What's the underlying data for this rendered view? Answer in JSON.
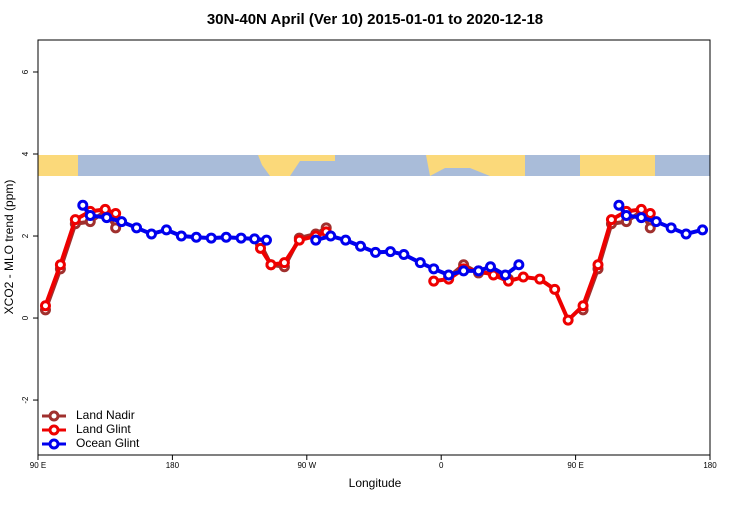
{
  "chart_data": {
    "type": "line",
    "title": "30N-40N April (Ver 10)   2015-01-01 to 2020-12-18",
    "x_label": "Longitude",
    "y_label": "XCO2 - MLO trend (ppm)",
    "xlim": [
      90,
      540
    ],
    "ylim": [
      -3.34,
      6.78
    ],
    "xticks": [
      {
        "value": 90,
        "label": "90 E"
      },
      180,
      {
        "value": 270,
        "label": "90 W"
      },
      {
        "value": 360,
        "label": "0"
      },
      {
        "value": 450,
        "label": "90 E"
      },
      {
        "value": 540,
        "label": "180"
      }
    ],
    "yticks": [
      -2,
      0,
      2,
      4,
      6
    ],
    "legend": "bottom-left",
    "series": [
      {
        "name": "Land Nadir",
        "color": "#a0302e",
        "x": [
          95,
          105,
          115,
          125,
          135,
          142,
          null,
          239,
          246,
          255,
          265,
          276,
          283,
          null,
          365,
          375,
          385,
          395,
          405,
          null,
          455,
          465,
          474,
          484,
          494,
          500
        ],
        "values": [
          0.2,
          1.2,
          2.3,
          2.35,
          2.6,
          2.2,
          null,
          1.8,
          1.3,
          1.25,
          1.95,
          2.05,
          2.2,
          null,
          1.0,
          1.3,
          1.1,
          1.1,
          0.95,
          null,
          0.2,
          1.2,
          2.3,
          2.35,
          2.6,
          2.2
        ]
      },
      {
        "name": "Land Glint",
        "color": "#ee0000",
        "x": [
          95,
          105,
          115,
          125,
          135,
          142,
          null,
          239,
          246,
          255,
          265,
          276,
          283,
          null,
          355,
          365,
          375,
          385,
          395,
          405,
          415,
          426,
          436,
          445,
          455,
          465,
          474,
          484,
          494,
          500
        ],
        "values": [
          0.3,
          1.3,
          2.4,
          2.6,
          2.65,
          2.55,
          null,
          1.7,
          1.3,
          1.35,
          1.9,
          2.0,
          2.1,
          null,
          0.9,
          0.95,
          1.2,
          1.15,
          1.05,
          0.9,
          1.0,
          0.95,
          0.7,
          -0.05,
          0.3,
          1.3,
          2.4,
          2.6,
          2.65,
          2.55
        ]
      },
      {
        "name": "Ocean Glint",
        "color": "#0000ee",
        "x": [
          120,
          125,
          136,
          146,
          156,
          166,
          176,
          186,
          196,
          206,
          216,
          226,
          235,
          243,
          null,
          276,
          286,
          296,
          306,
          316,
          326,
          335,
          346,
          355,
          365,
          375,
          385,
          393,
          403,
          412,
          null,
          479,
          484,
          494,
          504,
          514,
          524,
          535
        ],
        "values": [
          2.75,
          2.5,
          2.45,
          2.35,
          2.2,
          2.05,
          2.15,
          2.0,
          1.97,
          1.95,
          1.97,
          1.95,
          1.93,
          1.9,
          null,
          1.9,
          2.0,
          1.9,
          1.75,
          1.6,
          1.62,
          1.55,
          1.35,
          1.2,
          1.05,
          1.15,
          1.15,
          1.25,
          1.05,
          1.3,
          null,
          2.75,
          2.5,
          2.45,
          2.35,
          2.2,
          2.05,
          2.15
        ]
      }
    ]
  }
}
